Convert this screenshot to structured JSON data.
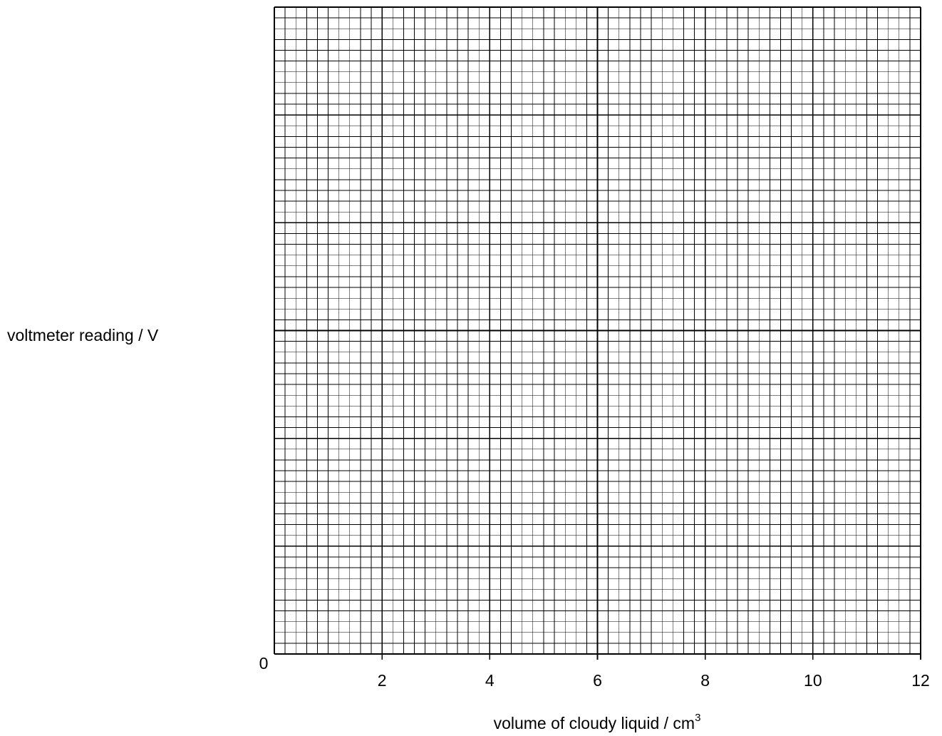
{
  "chart_data": {
    "type": "scatter",
    "title": "",
    "xlabel": "volume of cloudy liquid / cm",
    "xlabel_superscript": "3",
    "ylabel": "voltmeter reading / V",
    "origin_label": "0",
    "xlim": [
      0,
      12
    ],
    "x_ticks": [
      2,
      4,
      6,
      8,
      10,
      12
    ],
    "x_tick_labels": [
      "2",
      "4",
      "6",
      "8",
      "10",
      "12"
    ],
    "x_major_divisions": 6,
    "x_minor_per_major": 10,
    "y_major_divisions": 6,
    "y_minor_per_major": 10,
    "y_tick_labels": [],
    "grid": true,
    "series": [],
    "colors": {
      "grid_minor": "#000000",
      "grid_major": "#000000",
      "background": "#ffffff"
    }
  }
}
